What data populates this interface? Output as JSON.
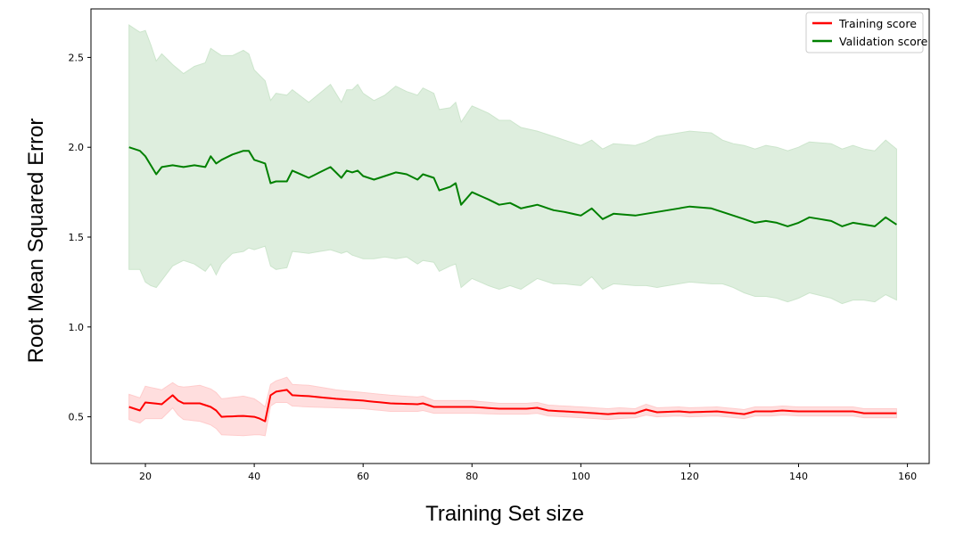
{
  "chart_data": {
    "type": "line",
    "title": "",
    "xlabel": "Training Set size",
    "ylabel": "Root Mean Squared Error",
    "xlim": [
      10,
      164
    ],
    "ylim": [
      0.24,
      2.77
    ],
    "xticks": [
      20,
      40,
      60,
      80,
      100,
      120,
      140,
      160
    ],
    "yticks": [
      0.5,
      1.0,
      1.5,
      2.0,
      2.5
    ],
    "x_start": 17,
    "x_end": 158,
    "grid": false,
    "legend": {
      "position": "top-right"
    },
    "series": [
      {
        "name": "Training score",
        "color": "#ff0000",
        "band_color": "#ffcccc",
        "keypoints": {
          "x": [
            17,
            19,
            20,
            23,
            25,
            26,
            27,
            30,
            32,
            33,
            34,
            38,
            40,
            41,
            42,
            43,
            44,
            46,
            47,
            50,
            55,
            60,
            65,
            70,
            71,
            73,
            75,
            80,
            85,
            90,
            92,
            94,
            100,
            105,
            107,
            110,
            112,
            114,
            118,
            120,
            125,
            130,
            132,
            135,
            137,
            140,
            145,
            150,
            152,
            155,
            158
          ],
          "mean": [
            0.555,
            0.535,
            0.58,
            0.57,
            0.62,
            0.59,
            0.575,
            0.575,
            0.555,
            0.535,
            0.5,
            0.505,
            0.5,
            0.49,
            0.475,
            0.62,
            0.64,
            0.65,
            0.62,
            0.615,
            0.6,
            0.59,
            0.575,
            0.57,
            0.575,
            0.555,
            0.555,
            0.555,
            0.545,
            0.545,
            0.55,
            0.535,
            0.525,
            0.515,
            0.52,
            0.52,
            0.54,
            0.525,
            0.53,
            0.525,
            0.53,
            0.515,
            0.53,
            0.53,
            0.535,
            0.53,
            0.53,
            0.53,
            0.52,
            0.52,
            0.52
          ],
          "std": [
            0.07,
            0.07,
            0.09,
            0.08,
            0.07,
            0.08,
            0.09,
            0.1,
            0.1,
            0.1,
            0.1,
            0.11,
            0.1,
            0.09,
            0.08,
            0.06,
            0.06,
            0.07,
            0.06,
            0.06,
            0.05,
            0.045,
            0.045,
            0.04,
            0.04,
            0.035,
            0.035,
            0.035,
            0.03,
            0.03,
            0.03,
            0.03,
            0.03,
            0.03,
            0.03,
            0.025,
            0.03,
            0.025,
            0.025,
            0.025,
            0.025,
            0.025,
            0.025,
            0.025,
            0.025,
            0.025,
            0.025,
            0.025,
            0.025,
            0.025,
            0.025
          ]
        }
      },
      {
        "name": "Validation score",
        "color": "#008000",
        "band_color": "#cce5cc",
        "keypoints": {
          "x": [
            17,
            19,
            20,
            21,
            22,
            23,
            25,
            27,
            29,
            31,
            32,
            33,
            34,
            36,
            38,
            39,
            40,
            42,
            43,
            44,
            46,
            47,
            50,
            54,
            56,
            57,
            58,
            59,
            60,
            62,
            64,
            66,
            68,
            70,
            71,
            73,
            74,
            76,
            77,
            78,
            80,
            83,
            85,
            87,
            89,
            92,
            95,
            97,
            100,
            102,
            104,
            106,
            110,
            112,
            114,
            118,
            120,
            124,
            126,
            128,
            130,
            132,
            134,
            136,
            138,
            140,
            142,
            146,
            148,
            150,
            152,
            154,
            156,
            158
          ],
          "mean": [
            2.0,
            1.98,
            1.95,
            1.9,
            1.85,
            1.89,
            1.9,
            1.89,
            1.9,
            1.89,
            1.95,
            1.91,
            1.93,
            1.96,
            1.98,
            1.98,
            1.93,
            1.91,
            1.8,
            1.81,
            1.81,
            1.87,
            1.83,
            1.89,
            1.83,
            1.87,
            1.86,
            1.87,
            1.84,
            1.82,
            1.84,
            1.86,
            1.85,
            1.82,
            1.85,
            1.83,
            1.76,
            1.78,
            1.8,
            1.68,
            1.75,
            1.71,
            1.68,
            1.69,
            1.66,
            1.68,
            1.65,
            1.64,
            1.62,
            1.66,
            1.6,
            1.63,
            1.62,
            1.63,
            1.64,
            1.66,
            1.67,
            1.66,
            1.64,
            1.62,
            1.6,
            1.58,
            1.59,
            1.58,
            1.56,
            1.58,
            1.61,
            1.59,
            1.56,
            1.58,
            1.57,
            1.56,
            1.61,
            1.57
          ],
          "std": [
            0.68,
            0.66,
            0.7,
            0.67,
            0.63,
            0.63,
            0.56,
            0.52,
            0.55,
            0.58,
            0.6,
            0.62,
            0.58,
            0.55,
            0.56,
            0.54,
            0.5,
            0.46,
            0.46,
            0.49,
            0.48,
            0.45,
            0.42,
            0.46,
            0.42,
            0.45,
            0.46,
            0.48,
            0.46,
            0.44,
            0.45,
            0.48,
            0.46,
            0.47,
            0.48,
            0.47,
            0.45,
            0.44,
            0.45,
            0.46,
            0.48,
            0.48,
            0.47,
            0.46,
            0.45,
            0.41,
            0.41,
            0.4,
            0.39,
            0.38,
            0.39,
            0.39,
            0.39,
            0.4,
            0.42,
            0.42,
            0.42,
            0.42,
            0.4,
            0.4,
            0.41,
            0.41,
            0.42,
            0.42,
            0.42,
            0.42,
            0.42,
            0.43,
            0.43,
            0.43,
            0.42,
            0.42,
            0.43,
            0.42
          ]
        }
      }
    ]
  }
}
